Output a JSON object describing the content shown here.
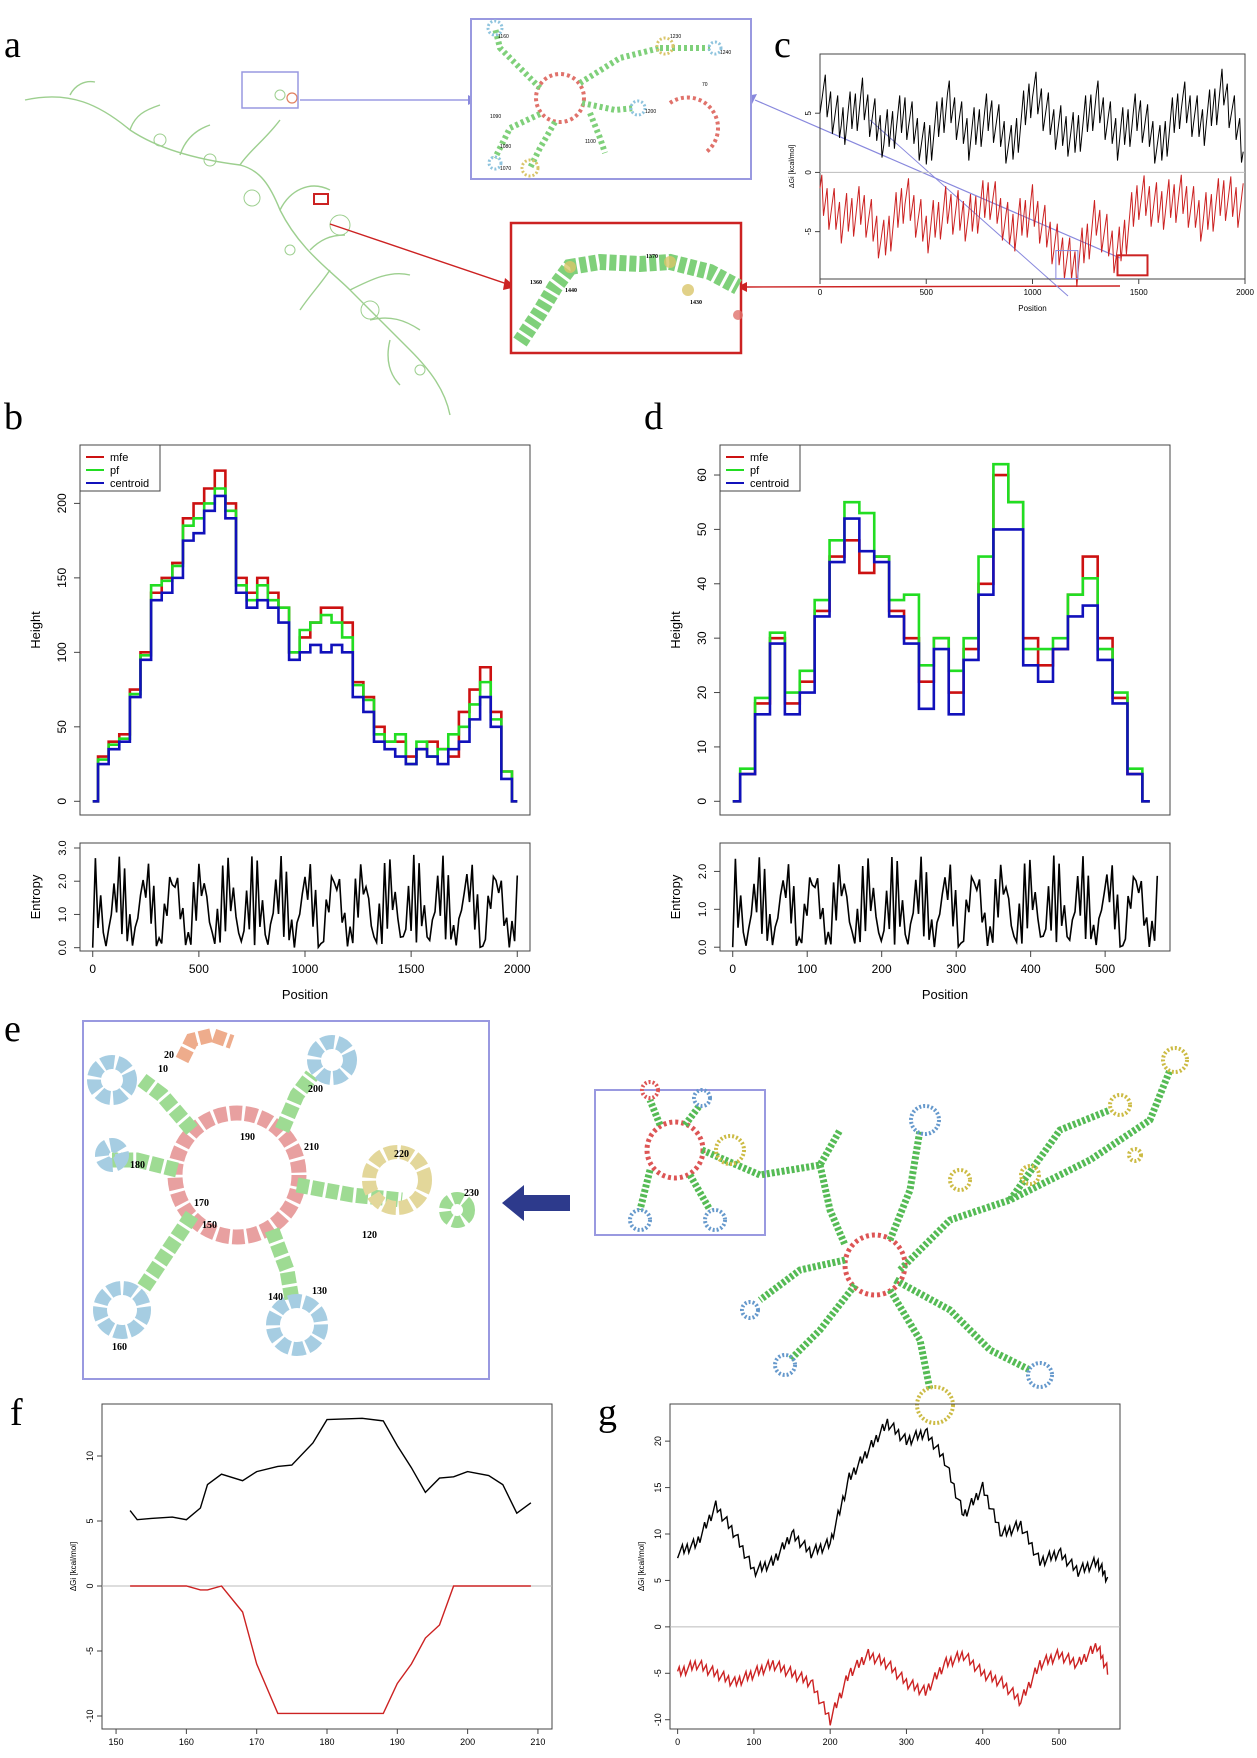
{
  "figure": {
    "panels": {
      "a": "a",
      "b": "b",
      "c": "c",
      "d": "d",
      "e": "e",
      "f": "f",
      "g": "g"
    }
  },
  "zoom_blue": {
    "labels": [
      "1160",
      "1230",
      "1240",
      "1090",
      "1200",
      "1100",
      "1080",
      "70",
      "1070"
    ],
    "colors": {
      "stem": "#7fd07a",
      "hairpin": "#8fc4de",
      "multi": "#e0726b",
      "interior": "#d9c56a",
      "box_blue": "#9999e0"
    }
  },
  "zoom_red": {
    "labels": [
      "1360",
      "1370",
      "1440",
      "1430"
    ],
    "colors": {
      "box_red": "#cc2222"
    }
  },
  "panel_e": {
    "labels": [
      "20",
      "10",
      "190",
      "200",
      "210",
      "180",
      "170",
      "220",
      "230",
      "150",
      "120",
      "140",
      "130",
      "160"
    ]
  },
  "chart_data": [
    {
      "id": "c",
      "type": "line",
      "xlabel": "Position",
      "ylabel": "ΔGi [kcal/mol]",
      "xlim": [
        0,
        2000
      ],
      "ylim": [
        -9,
        10
      ],
      "xticks": [
        "0",
        "500",
        "1000",
        "1500",
        "2000"
      ],
      "yticks": [
        "5",
        "0",
        "-5"
      ],
      "series": [
        {
          "color": "#000000",
          "values_desc": "positive dGi profile",
          "x": [
            0,
            100,
            200,
            300,
            400,
            500,
            600,
            700,
            800,
            900,
            1000,
            1100,
            1200,
            1300,
            1400,
            1500,
            1600,
            1700,
            1800,
            1900,
            2000
          ],
          "values": [
            7,
            4,
            6,
            3,
            5,
            2,
            6,
            3,
            5,
            2,
            7,
            4,
            3,
            6,
            3,
            5,
            2,
            6,
            4,
            7,
            2
          ]
        },
        {
          "color": "#cc2222",
          "x": [
            0,
            100,
            200,
            300,
            400,
            500,
            600,
            700,
            800,
            900,
            1000,
            1100,
            1200,
            1300,
            1400,
            1500,
            1600,
            1700,
            1800,
            1900,
            2000
          ],
          "values": [
            -2,
            -4,
            -3,
            -6,
            -2,
            -5,
            -3,
            -4,
            -2,
            -5,
            -3,
            -6,
            -8,
            -4,
            -7,
            -2,
            -3,
            -2,
            -4,
            -2,
            -3
          ]
        }
      ]
    },
    {
      "id": "b",
      "type": "line",
      "xlabel": "Position",
      "ylabel": "Height",
      "xlim": [
        0,
        2000
      ],
      "ylim": [
        0,
        230
      ],
      "xticks": [
        "0",
        "500",
        "1000",
        "1500",
        "2000"
      ],
      "yticks": [
        "0",
        "50",
        "100",
        "150",
        "200"
      ],
      "legend": "top-left",
      "x": [
        0,
        50,
        100,
        150,
        200,
        250,
        300,
        350,
        400,
        450,
        500,
        550,
        600,
        650,
        700,
        750,
        800,
        850,
        900,
        950,
        1000,
        1050,
        1100,
        1150,
        1200,
        1250,
        1300,
        1350,
        1400,
        1450,
        1500,
        1550,
        1600,
        1650,
        1700,
        1750,
        1800,
        1850,
        1900,
        1950,
        2000
      ],
      "series": [
        {
          "name": "mfe",
          "color": "#cc1111",
          "values": [
            0,
            30,
            40,
            45,
            75,
            100,
            140,
            150,
            160,
            190,
            200,
            210,
            222,
            200,
            150,
            140,
            150,
            140,
            130,
            100,
            110,
            120,
            130,
            130,
            120,
            80,
            70,
            50,
            40,
            40,
            30,
            35,
            40,
            35,
            30,
            60,
            75,
            90,
            60,
            20,
            0
          ]
        },
        {
          "name": "pf",
          "color": "#22dd22",
          "values": [
            0,
            28,
            38,
            42,
            72,
            98,
            145,
            148,
            158,
            185,
            190,
            200,
            210,
            195,
            145,
            135,
            145,
            135,
            130,
            100,
            115,
            120,
            125,
            120,
            110,
            78,
            68,
            45,
            40,
            45,
            25,
            40,
            30,
            35,
            45,
            50,
            65,
            80,
            55,
            20,
            0
          ]
        },
        {
          "name": "centroid",
          "color": "#1111bb",
          "values": [
            0,
            25,
            35,
            40,
            70,
            95,
            135,
            140,
            150,
            175,
            180,
            195,
            205,
            190,
            140,
            130,
            135,
            130,
            120,
            95,
            100,
            105,
            100,
            105,
            100,
            70,
            60,
            40,
            35,
            30,
            25,
            35,
            30,
            25,
            35,
            40,
            55,
            70,
            50,
            15,
            0
          ]
        }
      ],
      "entropy": {
        "ylabel": "Entropy",
        "yticks": [
          "0.0",
          "1.0",
          "2.0",
          "3.0"
        ],
        "ylim": [
          0,
          3
        ]
      }
    },
    {
      "id": "d",
      "type": "line",
      "xlabel": "Position",
      "ylabel": "Height",
      "xlim": [
        0,
        570
      ],
      "ylim": [
        0,
        63
      ],
      "xticks": [
        "0",
        "100",
        "200",
        "300",
        "400",
        "500"
      ],
      "yticks": [
        "0",
        "10",
        "20",
        "30",
        "40",
        "50",
        "60"
      ],
      "legend": "top-left",
      "x": [
        0,
        20,
        40,
        60,
        80,
        100,
        120,
        140,
        160,
        180,
        200,
        220,
        240,
        260,
        280,
        300,
        320,
        340,
        360,
        380,
        400,
        420,
        440,
        460,
        480,
        500,
        520,
        540,
        560
      ],
      "series": [
        {
          "name": "mfe",
          "color": "#cc1111",
          "values": [
            0,
            5,
            18,
            30,
            18,
            22,
            35,
            45,
            48,
            42,
            45,
            35,
            30,
            22,
            30,
            20,
            28,
            40,
            60,
            55,
            30,
            25,
            28,
            38,
            45,
            30,
            19,
            5,
            0
          ]
        },
        {
          "name": "pf",
          "color": "#22dd22",
          "values": [
            0,
            6,
            19,
            31,
            20,
            24,
            37,
            48,
            55,
            53,
            45,
            37,
            38,
            25,
            30,
            24,
            30,
            45,
            62,
            55,
            28,
            28,
            30,
            38,
            41,
            28,
            20,
            6,
            0
          ]
        },
        {
          "name": "centroid",
          "color": "#1111bb",
          "values": [
            0,
            5,
            16,
            29,
            16,
            20,
            34,
            44,
            52,
            46,
            44,
            34,
            29,
            17,
            28,
            16,
            26,
            38,
            50,
            50,
            25,
            22,
            28,
            34,
            36,
            26,
            18,
            5,
            0
          ]
        }
      ],
      "entropy": {
        "ylabel": "Entropy",
        "yticks": [
          "0.0",
          "1.0",
          "2.0"
        ],
        "ylim": [
          0,
          2.6
        ]
      }
    },
    {
      "id": "f",
      "type": "line",
      "ylabel": "ΔGi [kcal/mol]",
      "xlim": [
        148,
        212
      ],
      "ylim": [
        -11,
        14
      ],
      "xticks": [
        "150",
        "160",
        "170",
        "180",
        "190",
        "200",
        "210"
      ],
      "yticks": [
        "10",
        "5",
        "0",
        "-5",
        "-10"
      ],
      "x": [
        152,
        153,
        155,
        158,
        160,
        162,
        163,
        165,
        168,
        170,
        173,
        175,
        178,
        180,
        185,
        188,
        190,
        192,
        194,
        196,
        198,
        200,
        203,
        205,
        207,
        209
      ],
      "series": [
        {
          "color": "#000000",
          "values": [
            5.8,
            5.1,
            5.2,
            5.3,
            5.1,
            6,
            7.8,
            8.6,
            8.1,
            8.8,
            9.2,
            9.3,
            11,
            12.8,
            12.9,
            12.7,
            10.8,
            9.1,
            7.2,
            8.3,
            8.4,
            8.8,
            8.5,
            7.8,
            5.6,
            6.4
          ]
        },
        {
          "color": "#cc2222",
          "values": [
            0,
            0,
            0,
            0,
            0,
            -0.3,
            -0.3,
            0,
            -2,
            -6,
            -9.8,
            -9.8,
            -9.8,
            -9.8,
            -9.8,
            -9.8,
            -7.5,
            -6,
            -4,
            -3,
            0,
            0,
            0,
            0,
            0,
            0
          ]
        }
      ]
    },
    {
      "id": "g",
      "type": "line",
      "ylabel": "ΔGi [kcal/mol]",
      "xlim": [
        -10,
        580
      ],
      "ylim": [
        -11,
        24
      ],
      "xticks": [
        "0",
        "100",
        "200",
        "300",
        "400",
        "500"
      ],
      "yticks": [
        "20",
        "15",
        "10",
        "5",
        "0",
        "-5",
        "-10"
      ],
      "x": [
        0,
        25,
        50,
        75,
        100,
        125,
        150,
        175,
        200,
        225,
        250,
        275,
        300,
        325,
        350,
        375,
        400,
        425,
        450,
        475,
        500,
        525,
        550,
        565
      ],
      "series": [
        {
          "color": "#000000",
          "values": [
            8,
            9,
            13,
            10,
            6,
            7,
            10,
            8,
            9,
            16,
            19,
            22,
            20,
            21,
            18,
            12,
            15,
            10,
            11,
            7,
            8,
            6,
            7,
            5
          ]
        },
        {
          "color": "#cc2222",
          "values": [
            -5,
            -4,
            -5,
            -6,
            -5,
            -4,
            -5,
            -6,
            -10,
            -5,
            -3,
            -4,
            -6,
            -7,
            -4,
            -3,
            -5,
            -6,
            -8,
            -4,
            -3,
            -4,
            -2,
            -5
          ]
        }
      ]
    }
  ]
}
